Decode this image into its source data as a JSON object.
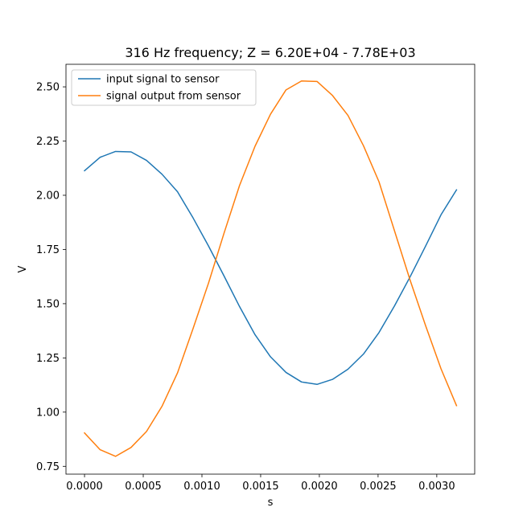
{
  "chart_data": {
    "type": "line",
    "title": "316 Hz frequency; Z = 6.20E+04 - 7.78E+03",
    "xlabel": "s",
    "ylabel": "V",
    "xlim": [
      -0.000158,
      0.003323
    ],
    "ylim": [
      0.714,
      2.604
    ],
    "xticks": [
      0.0,
      0.0005,
      0.001,
      0.0015,
      0.002,
      0.0025,
      0.003
    ],
    "xtick_labels": [
      "0.0000",
      "0.0005",
      "0.0010",
      "0.0015",
      "0.0020",
      "0.0025",
      "0.0030"
    ],
    "yticks": [
      0.75,
      1.0,
      1.25,
      1.5,
      1.75,
      2.0,
      2.25,
      2.5
    ],
    "ytick_labels": [
      "0.75",
      "1.00",
      "1.25",
      "1.50",
      "1.75",
      "2.00",
      "2.25",
      "2.50"
    ],
    "grid": false,
    "legend_position": "top-left",
    "x": [
      0.0,
      0.000132,
      0.000264,
      0.000396,
      0.000528,
      0.00066,
      0.000792,
      0.000924,
      0.001056,
      0.001188,
      0.00132,
      0.001452,
      0.001584,
      0.001716,
      0.001848,
      0.00198,
      0.002112,
      0.002244,
      0.002376,
      0.002508,
      0.00264,
      0.002772,
      0.002904,
      0.003036,
      0.003168
    ],
    "series": [
      {
        "name": "input signal to sensor",
        "color": "#1f77b4",
        "values": [
          2.113,
          2.175,
          2.202,
          2.2,
          2.161,
          2.097,
          2.016,
          1.896,
          1.766,
          1.628,
          1.487,
          1.357,
          1.255,
          1.183,
          1.139,
          1.128,
          1.151,
          1.198,
          1.268,
          1.367,
          1.49,
          1.623,
          1.765,
          1.91,
          2.025
        ]
      },
      {
        "name": "signal output from sensor",
        "color": "#ff7f0e",
        "values": [
          0.904,
          0.827,
          0.796,
          0.837,
          0.911,
          1.027,
          1.181,
          1.385,
          1.595,
          1.825,
          2.045,
          2.226,
          2.374,
          2.486,
          2.527,
          2.525,
          2.46,
          2.368,
          2.228,
          2.062,
          1.836,
          1.61,
          1.4,
          1.2,
          1.03
        ]
      }
    ]
  }
}
